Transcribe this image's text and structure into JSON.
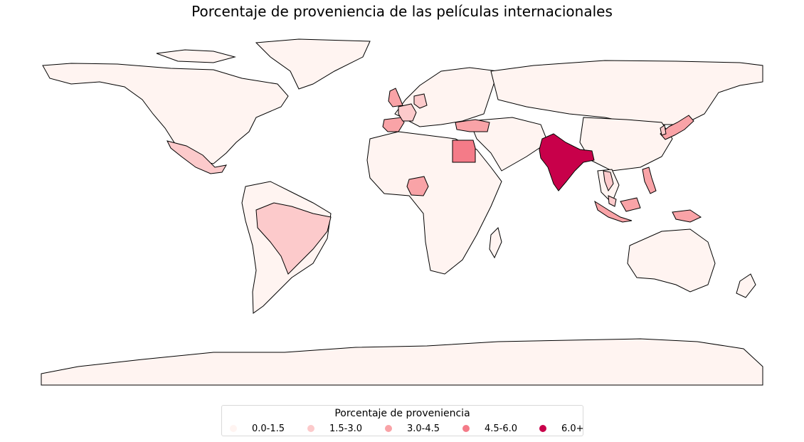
{
  "title": "Porcentaje de proveniencia de las películas internacionales",
  "legend": {
    "title": "Porcentaje de proveniencia",
    "items": [
      {
        "label": "0.0-1.5",
        "color": "#fff4f1"
      },
      {
        "label": "1.5-3.0",
        "color": "#fccacb"
      },
      {
        "label": "3.0-4.5",
        "color": "#f9a3a7"
      },
      {
        "label": "4.5-6.0",
        "color": "#f47b88"
      },
      {
        "label": "6.0+",
        "color": "#c8004a"
      }
    ]
  },
  "map_data": {
    "type": "choropleth",
    "projection": "equirectangular",
    "bins": [
      "0.0-1.5",
      "1.5-3.0",
      "3.0-4.5",
      "4.5-6.0",
      "6.0+"
    ],
    "default_bin": "0.0-1.5",
    "highlighted_regions": [
      {
        "region": "India",
        "bin": "6.0+"
      },
      {
        "region": "Egypt",
        "bin": "4.5-6.0"
      },
      {
        "region": "United Kingdom",
        "bin": "3.0-4.5"
      },
      {
        "region": "Spain",
        "bin": "3.0-4.5"
      },
      {
        "region": "Turkey",
        "bin": "3.0-4.5"
      },
      {
        "region": "Nigeria",
        "bin": "3.0-4.5"
      },
      {
        "region": "Indonesia",
        "bin": "3.0-4.5"
      },
      {
        "region": "Philippines",
        "bin": "3.0-4.5"
      },
      {
        "region": "Japan",
        "bin": "3.0-4.5"
      },
      {
        "region": "France",
        "bin": "1.5-3.0"
      },
      {
        "region": "Mexico",
        "bin": "1.5-3.0"
      },
      {
        "region": "Brazil",
        "bin": "1.5-3.0"
      },
      {
        "region": "Germany",
        "bin": "1.5-3.0"
      },
      {
        "region": "Thailand",
        "bin": "1.5-3.0"
      },
      {
        "region": "Malaysia",
        "bin": "1.5-3.0"
      },
      {
        "region": "South Korea",
        "bin": "1.5-3.0"
      }
    ]
  }
}
